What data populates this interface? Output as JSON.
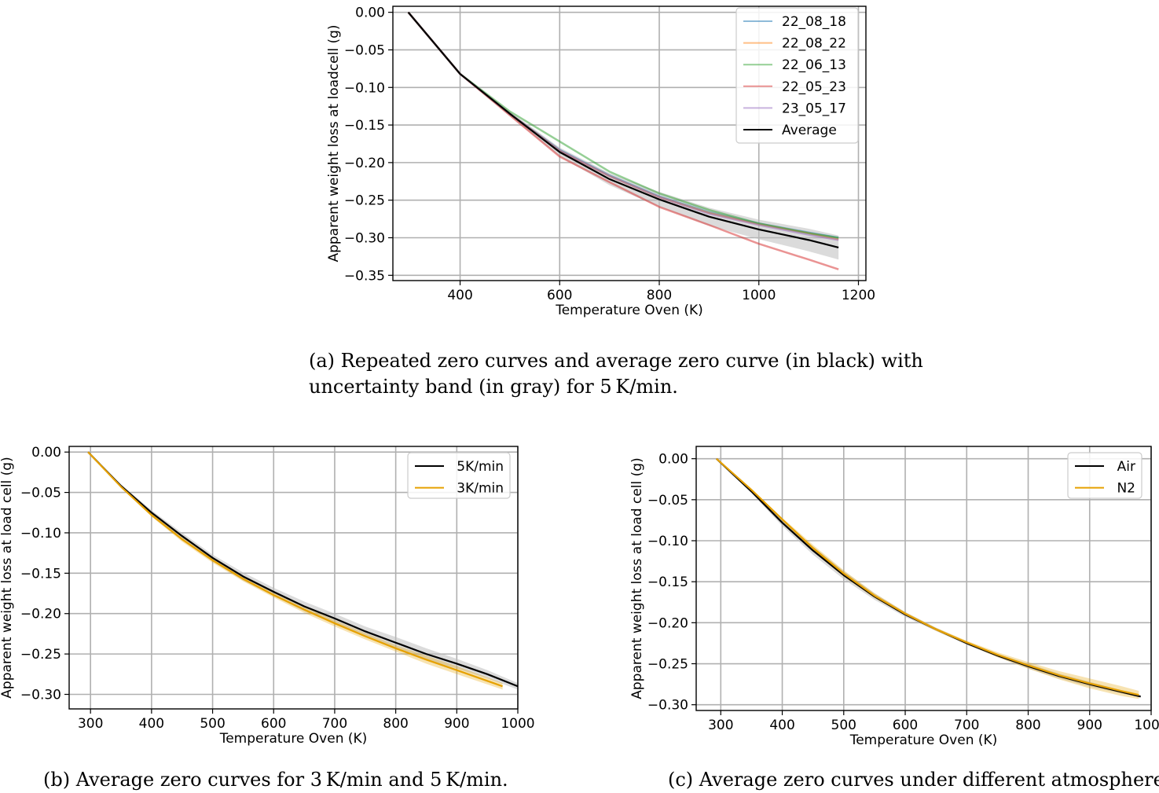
{
  "colors": {
    "c22_08_18": "#1f77b4",
    "c22_08_22": "#ff7f0e",
    "c22_06_13": "#2ca02c",
    "c22_05_23": "#d62728",
    "c23_05_17": "#9467bd",
    "average": "#000000",
    "band_gray": "#bdbdbd",
    "orange": "#e6a100",
    "grid": "#b0b0b0"
  },
  "chart_data": [
    {
      "id": "a",
      "type": "line",
      "xlabel": "Temperature Oven (K)",
      "ylabel": "Apparent weight loss at loadcell (g)",
      "xlim": [
        265,
        1215
      ],
      "ylim": [
        -0.357,
        0.008
      ],
      "xticks": [
        400,
        600,
        800,
        1000,
        1200
      ],
      "yticks": [
        0.0,
        -0.05,
        -0.1,
        -0.15,
        -0.2,
        -0.25,
        -0.3,
        -0.35
      ],
      "ytick_labels": [
        "0.00",
        "−0.05",
        "−0.10",
        "−0.15",
        "−0.20",
        "−0.25",
        "−0.30",
        "−0.35"
      ],
      "grid": true,
      "legend_position": "top-right",
      "series": [
        {
          "name": "22_08_18",
          "color_key": "c22_08_18",
          "x": [
            296,
            400,
            500,
            600,
            700,
            800,
            900,
            1000,
            1100,
            1160
          ],
          "y": [
            0.0,
            -0.082,
            -0.135,
            -0.183,
            -0.217,
            -0.245,
            -0.266,
            -0.281,
            -0.293,
            -0.3
          ]
        },
        {
          "name": "22_08_22",
          "color_key": "c22_08_22",
          "x": [
            296,
            400,
            500,
            600,
            700,
            800,
            900,
            1000,
            1100,
            1160
          ],
          "y": [
            0.0,
            -0.082,
            -0.135,
            -0.184,
            -0.218,
            -0.246,
            -0.267,
            -0.282,
            -0.294,
            -0.302
          ]
        },
        {
          "name": "22_06_13",
          "color_key": "c22_06_13",
          "x": [
            296,
            400,
            500,
            600,
            700,
            800,
            900,
            1000,
            1100,
            1160
          ],
          "y": [
            0.0,
            -0.082,
            -0.132,
            -0.172,
            -0.212,
            -0.241,
            -0.263,
            -0.281,
            -0.294,
            -0.3
          ]
        },
        {
          "name": "22_05_23",
          "color_key": "c22_05_23",
          "x": [
            296,
            400,
            500,
            600,
            700,
            800,
            900,
            1000,
            1100,
            1160
          ],
          "y": [
            0.0,
            -0.082,
            -0.137,
            -0.192,
            -0.226,
            -0.259,
            -0.283,
            -0.308,
            -0.329,
            -0.342
          ]
        },
        {
          "name": "23_05_17",
          "color_key": "c23_05_17",
          "x": [
            296,
            400,
            500,
            600,
            700,
            800,
            900,
            1000,
            1100,
            1160
          ],
          "y": [
            0.0,
            -0.082,
            -0.135,
            -0.184,
            -0.218,
            -0.246,
            -0.268,
            -0.283,
            -0.296,
            -0.303
          ]
        },
        {
          "name": "Average",
          "color_key": "average",
          "x": [
            296,
            400,
            500,
            600,
            700,
            800,
            900,
            1000,
            1100,
            1160
          ],
          "y": [
            0.0,
            -0.082,
            -0.135,
            -0.186,
            -0.222,
            -0.249,
            -0.272,
            -0.289,
            -0.303,
            -0.313
          ],
          "band": [
            0.0,
            0.001,
            0.003,
            0.006,
            0.008,
            0.01,
            0.012,
            0.013,
            0.015,
            0.016
          ]
        }
      ],
      "caption_lines": [
        "(a) Repeated zero curves and average zero curve (in black) with",
        "uncertainty band (in gray) for 5 K/min."
      ]
    },
    {
      "id": "b",
      "type": "line",
      "xlabel": "Temperature Oven (K)",
      "ylabel": "Apparent weight loss at load cell (g)",
      "xlim": [
        265,
        1000
      ],
      "ylim": [
        -0.318,
        0.007
      ],
      "xticks": [
        300,
        400,
        500,
        600,
        700,
        800,
        900,
        1000
      ],
      "yticks": [
        0.0,
        -0.05,
        -0.1,
        -0.15,
        -0.2,
        -0.25,
        -0.3
      ],
      "ytick_labels": [
        "0.00",
        "−0.05",
        "−0.10",
        "−0.15",
        "−0.20",
        "−0.25",
        "−0.30"
      ],
      "grid": true,
      "legend_position": "top-right",
      "series": [
        {
          "name": "5K/min",
          "color_key": "average",
          "x": [
            296,
            350,
            400,
            450,
            500,
            550,
            600,
            650,
            700,
            750,
            800,
            850,
            900,
            950,
            1000
          ],
          "y": [
            0.0,
            -0.042,
            -0.075,
            -0.104,
            -0.131,
            -0.154,
            -0.173,
            -0.191,
            -0.206,
            -0.222,
            -0.236,
            -0.25,
            -0.262,
            -0.275,
            -0.29
          ],
          "band": [
            0.0,
            0.002,
            0.003,
            0.004,
            0.004,
            0.005,
            0.005,
            0.006,
            0.006,
            0.006,
            0.007,
            0.007,
            0.006,
            0.005,
            0.004
          ]
        },
        {
          "name": "3K/min",
          "color_key": "orange",
          "x": [
            296,
            350,
            400,
            450,
            500,
            550,
            600,
            650,
            700,
            750,
            800,
            850,
            900,
            975
          ],
          "y": [
            0.0,
            -0.043,
            -0.078,
            -0.108,
            -0.134,
            -0.157,
            -0.177,
            -0.195,
            -0.212,
            -0.228,
            -0.243,
            -0.257,
            -0.27,
            -0.29
          ],
          "band": [
            0.0,
            0.001,
            0.002,
            0.003,
            0.003,
            0.003,
            0.003,
            0.004,
            0.004,
            0.004,
            0.004,
            0.005,
            0.005,
            0.004
          ]
        }
      ],
      "caption_lines": [
        "(b) Average zero curves for 3 K/min and 5 K/min."
      ]
    },
    {
      "id": "c",
      "type": "line",
      "xlabel": "Temperature Oven (K)",
      "ylabel": "Apparent weight loss at load cell (g)",
      "xlim": [
        260,
        1000
      ],
      "ylim": [
        -0.307,
        0.015
      ],
      "xticks": [
        300,
        400,
        500,
        600,
        700,
        800,
        900,
        1000
      ],
      "yticks": [
        0.0,
        -0.05,
        -0.1,
        -0.15,
        -0.2,
        -0.25,
        -0.3
      ],
      "ytick_labels": [
        "0.00",
        "−0.05",
        "−0.10",
        "−0.15",
        "−0.20",
        "−0.25",
        "−0.30"
      ],
      "grid": true,
      "legend_position": "top-right",
      "series": [
        {
          "name": "Air",
          "color_key": "average",
          "x": [
            293,
            350,
            400,
            450,
            500,
            550,
            600,
            650,
            700,
            750,
            800,
            850,
            900,
            950,
            983
          ],
          "y": [
            0.0,
            -0.04,
            -0.078,
            -0.112,
            -0.142,
            -0.168,
            -0.19,
            -0.208,
            -0.225,
            -0.24,
            -0.253,
            -0.265,
            -0.275,
            -0.284,
            -0.29
          ],
          "band": [
            0.0,
            0.002,
            0.004,
            0.005,
            0.005,
            0.004,
            0.003,
            0.002,
            0.002,
            0.002,
            0.003,
            0.003,
            0.003,
            0.002,
            0.001
          ]
        },
        {
          "name": "N2",
          "color_key": "orange",
          "x": [
            293,
            350,
            400,
            450,
            500,
            550,
            600,
            650,
            700,
            750,
            800,
            850,
            900,
            950,
            980
          ],
          "y": [
            0.0,
            -0.038,
            -0.074,
            -0.109,
            -0.14,
            -0.167,
            -0.189,
            -0.208,
            -0.224,
            -0.239,
            -0.252,
            -0.264,
            -0.274,
            -0.283,
            -0.288
          ],
          "band": [
            0.0,
            0.001,
            0.002,
            0.004,
            0.004,
            0.003,
            0.002,
            0.002,
            0.002,
            0.003,
            0.004,
            0.005,
            0.006,
            0.006,
            0.005
          ]
        }
      ],
      "caption_lines": [
        "(c) Average zero curves under different atmospheres."
      ]
    }
  ]
}
